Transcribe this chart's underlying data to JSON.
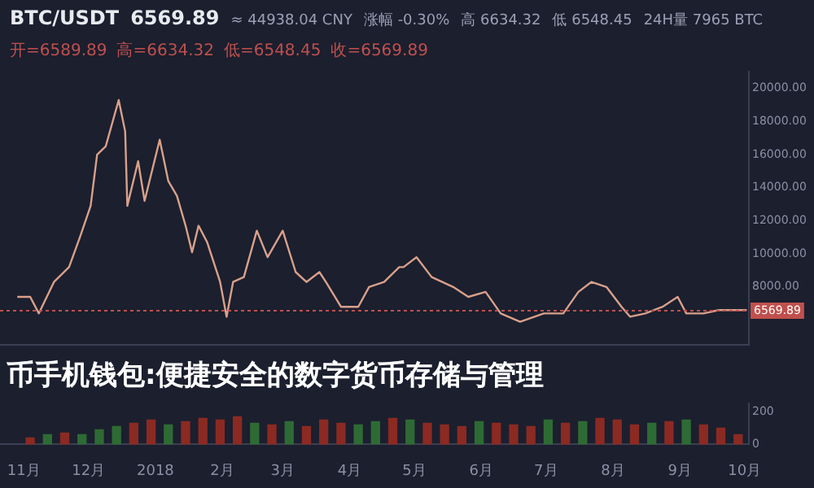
{
  "chart_data": [
    {
      "type": "line",
      "title": "BTC/USDT",
      "subtitle": "6569.89",
      "annotations": [
        "≈ 44938.04 CNY",
        "涨幅 -0.30%",
        "高 6634.32",
        "低 6548.45",
        "24H量 7965 BTC",
        "开=6589.89",
        "高=6634.32",
        "低=6548.45",
        "收=6569.89",
        "币手机钱包:便捷安全的数字货币存储与管理"
      ],
      "x": [
        "2017-10-29",
        "2017-11-04",
        "2017-11-08",
        "2017-11-15",
        "2017-11-22",
        "2017-11-27",
        "2017-12-02",
        "2017-12-05",
        "2017-12-09",
        "2017-12-15",
        "2017-12-18",
        "2017-12-19",
        "2017-12-24",
        "2017-12-27",
        "2018-01-03",
        "2018-01-07",
        "2018-01-11",
        "2018-01-15",
        "2018-01-18",
        "2018-01-21",
        "2018-01-25",
        "2018-01-31",
        "2018-02-03",
        "2018-02-06",
        "2018-02-11",
        "2018-02-17",
        "2018-02-22",
        "2018-03-01",
        "2018-03-07",
        "2018-03-12",
        "2018-03-18",
        "2018-03-21",
        "2018-03-28",
        "2018-04-05",
        "2018-04-10",
        "2018-04-17",
        "2018-04-24",
        "2018-04-26",
        "2018-05-02",
        "2018-05-09",
        "2018-05-19",
        "2018-05-26",
        "2018-06-03",
        "2018-06-10",
        "2018-06-19",
        "2018-06-30",
        "2018-07-09",
        "2018-07-16",
        "2018-07-22",
        "2018-07-29",
        "2018-08-05",
        "2018-08-09",
        "2018-08-16",
        "2018-08-24",
        "2018-08-31",
        "2018-09-04",
        "2018-09-12",
        "2018-09-19",
        "2018-09-27",
        "2018-10-02"
      ],
      "values": [
        7400,
        7400,
        6400,
        8300,
        9200,
        11000,
        12900,
        16000,
        16500,
        19300,
        17400,
        12900,
        15600,
        13200,
        16900,
        14400,
        13500,
        11700,
        10100,
        11700,
        10700,
        8300,
        6200,
        8300,
        8600,
        11400,
        9800,
        11400,
        8900,
        8300,
        8900,
        8300,
        6800,
        6800,
        8000,
        8300,
        9200,
        9200,
        9800,
        8600,
        8000,
        7400,
        7700,
        6400,
        5900,
        6400,
        6400,
        7700,
        8300,
        8000,
        6800,
        6200,
        6400,
        6800,
        7400,
        6400,
        6400,
        6600,
        6600,
        6600
      ],
      "color": "#d9a08a",
      "xlim": [
        "2017-10-21",
        "2018-10-03"
      ],
      "ylim": [
        4500,
        21000
      ],
      "yticks": [
        {
          "value": 8000,
          "label": "8000.00"
        },
        {
          "value": 10000,
          "label": "10000.00"
        },
        {
          "value": 12000,
          "label": "12000.00"
        },
        {
          "value": 14000,
          "label": "14000.00"
        },
        {
          "value": 16000,
          "label": "16000.00"
        },
        {
          "value": 18000,
          "label": "18000.00"
        },
        {
          "value": 20000,
          "label": "20000.00"
        }
      ],
      "ref_lines": [
        {
          "axis": "y",
          "value": 6569.89,
          "label": "6569.89",
          "color": "#c0504d"
        }
      ],
      "tick_labels": "y",
      "legend": false,
      "grid": false
    },
    {
      "type": "bar",
      "x": [
        "2017-11-04",
        "2017-11-12",
        "2017-11-20",
        "2017-11-28",
        "2017-12-06",
        "2017-12-14",
        "2017-12-22",
        "2017-12-30",
        "2018-01-07",
        "2018-01-15",
        "2018-01-23",
        "2018-01-31",
        "2018-02-08",
        "2018-02-16",
        "2018-02-24",
        "2018-03-04",
        "2018-03-12",
        "2018-03-20",
        "2018-03-28",
        "2018-04-05",
        "2018-04-13",
        "2018-04-21",
        "2018-04-29",
        "2018-05-07",
        "2018-05-15",
        "2018-05-23",
        "2018-05-31",
        "2018-06-08",
        "2018-06-16",
        "2018-06-24",
        "2018-07-02",
        "2018-07-10",
        "2018-07-18",
        "2018-07-26",
        "2018-08-03",
        "2018-08-11",
        "2018-08-19",
        "2018-08-27",
        "2018-09-04",
        "2018-09-12",
        "2018-09-20",
        "2018-09-28"
      ],
      "values": [
        40,
        60,
        70,
        60,
        90,
        110,
        130,
        150,
        120,
        140,
        160,
        150,
        170,
        130,
        120,
        140,
        110,
        150,
        130,
        120,
        140,
        160,
        150,
        130,
        120,
        110,
        140,
        130,
        120,
        110,
        150,
        130,
        140,
        160,
        150,
        120,
        130,
        140,
        150,
        120,
        100,
        60
      ],
      "colors": [
        "#8b2a22",
        "#2e6b34",
        "#8b2a22",
        "#2e6b34",
        "#2e6b34",
        "#2e6b34",
        "#8b2a22",
        "#8b2a22",
        "#2e6b34",
        "#8b2a22",
        "#8b2a22",
        "#8b2a22",
        "#8b2a22",
        "#2e6b34",
        "#8b2a22",
        "#2e6b34",
        "#8b2a22",
        "#8b2a22",
        "#8b2a22",
        "#2e6b34",
        "#2e6b34",
        "#8b2a22",
        "#2e6b34",
        "#8b2a22",
        "#8b2a22",
        "#8b2a22",
        "#2e6b34",
        "#8b2a22",
        "#8b2a22",
        "#8b2a22",
        "#2e6b34",
        "#8b2a22",
        "#2e6b34",
        "#8b2a22",
        "#8b2a22",
        "#8b2a22",
        "#2e6b34",
        "#8b2a22",
        "#2e6b34",
        "#8b2a22",
        "#8b2a22",
        "#8b2a22"
      ],
      "xlim": [
        "2017-10-21",
        "2018-10-03"
      ],
      "xticks": [
        {
          "value": "2017-11-01",
          "label": "11月"
        },
        {
          "value": "2017-12-01",
          "label": "12月"
        },
        {
          "value": "2018-01-01",
          "label": "2018"
        },
        {
          "value": "2018-02-01",
          "label": "2月"
        },
        {
          "value": "2018-03-01",
          "label": "3月"
        },
        {
          "value": "2018-04-01",
          "label": "4月"
        },
        {
          "value": "2018-05-01",
          "label": "5月"
        },
        {
          "value": "2018-06-01",
          "label": "6月"
        },
        {
          "value": "2018-07-01",
          "label": "7月"
        },
        {
          "value": "2018-08-01",
          "label": "8月"
        },
        {
          "value": "2018-09-01",
          "label": "9月"
        },
        {
          "value": "2018-10-01",
          "label": "10月"
        }
      ],
      "ylim": [
        0,
        250
      ],
      "yticks": [
        0,
        200
      ],
      "legend": false,
      "grid": false
    }
  ]
}
